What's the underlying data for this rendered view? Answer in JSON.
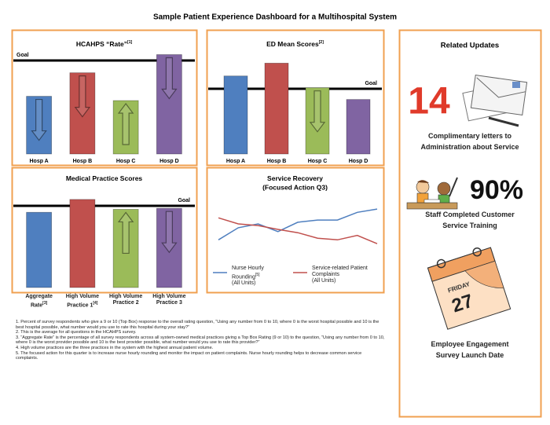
{
  "title": "Sample Patient Experience Dashboard for a Multihospital System",
  "chart_data": [
    {
      "type": "bar",
      "title": "HCAHPS “Rate”",
      "title_note": "[1]",
      "categories": [
        "Hosp A",
        "Hosp B",
        "Hosp C",
        "Hosp D"
      ],
      "values": [
        54,
        76,
        50,
        93
      ],
      "colors": [
        "#4f7fbf",
        "#c0504d",
        "#9bbb59",
        "#8064a2"
      ],
      "arrows": [
        "down",
        "down",
        "up",
        "down"
      ],
      "goal": 87.5,
      "goal_label": "Goal",
      "goal_label_side": "left",
      "ylim": [
        0,
        100
      ]
    },
    {
      "type": "bar",
      "title": "ED Mean Scores",
      "title_note": "[2]",
      "categories": [
        "Hosp A",
        "Hosp B",
        "Hosp C",
        "Hosp D"
      ],
      "values": [
        73,
        85,
        62,
        51
      ],
      "colors": [
        "#4f7fbf",
        "#c0504d",
        "#9bbb59",
        "#8064a2"
      ],
      "arrows": [
        null,
        null,
        "down",
        null
      ],
      "goal": 61,
      "goal_label": "Goal",
      "goal_label_side": "right",
      "ylim": [
        0,
        100
      ]
    },
    {
      "type": "bar",
      "title": "Medical Practice Scores",
      "categories": [
        "Aggregate Rate",
        "High Volume Practice 1",
        "High Volume Practice 2",
        "High Volume Practice 3"
      ],
      "category_notes": [
        "[3]",
        "[4]",
        null,
        null
      ],
      "values": [
        76,
        89,
        79,
        80
      ],
      "colors": [
        "#4f7fbf",
        "#c0504d",
        "#9bbb59",
        "#8064a2"
      ],
      "arrows": [
        null,
        null,
        "up",
        "down"
      ],
      "goal": 82.5,
      "goal_label": "Goal",
      "goal_label_side": "right",
      "ylim": [
        0,
        100
      ]
    },
    {
      "type": "line",
      "title": "Service Recovery",
      "subtitle": "(Focused Action Q3)",
      "categories": [
        null,
        null,
        null,
        null,
        null,
        null,
        null,
        null,
        null
      ],
      "ylim": [
        0,
        100
      ],
      "series": [
        {
          "name": "Nurse Hourly Rounding",
          "note": "[5]",
          "unit": "(All Units)",
          "color": "#4f7fbf",
          "values": [
            21,
            43,
            50,
            36,
            53,
            57,
            57,
            71,
            77
          ]
        },
        {
          "name": "Service-related Patient Complaints",
          "unit": "(All Units)",
          "color": "#c0504d",
          "values": [
            61,
            50,
            47,
            40,
            34,
            24,
            21,
            29,
            14
          ]
        }
      ]
    }
  ],
  "related_updates": {
    "title": "Related Updates",
    "items": [
      {
        "figure": "14",
        "text": "Complimentary letters to Administration about Service"
      },
      {
        "figure": "90%",
        "text": "Staff Completed Customer Service Training"
      },
      {
        "day": "27",
        "weekday": "FRIDAY",
        "text": "Employee Engagement Survey Launch Date"
      }
    ]
  },
  "footnotes": [
    "1. Percent of survey respondents who give a 9 or 10 (Top Box) response to the overall rating question, “Using any number from 0 to 10, where 0 is the worst hospital possible and 10 is the best hospital possible, what number would you use to rate this hospital during your stay?”",
    "2. This is the average for all questions in the HCAHPS survey.",
    "3. “Aggregate Rate” is the percentage of all survey respondents across all system-owned medical practices giving a Top Box Rating (9 or 10) to the question, “Using any number from 0 to 10, where 0 is the worst provider possible and 10 is the best provider possible, what number would you use to rate this provider?”",
    "4. High volume practices are the three practices in the system with the highest annual patient volume.",
    "5. The focused action for this quarter is to increase nurse hourly rounding and monitor the impact on patient complaints. Nurse hourly rounding helps to decrease common service complaints."
  ]
}
